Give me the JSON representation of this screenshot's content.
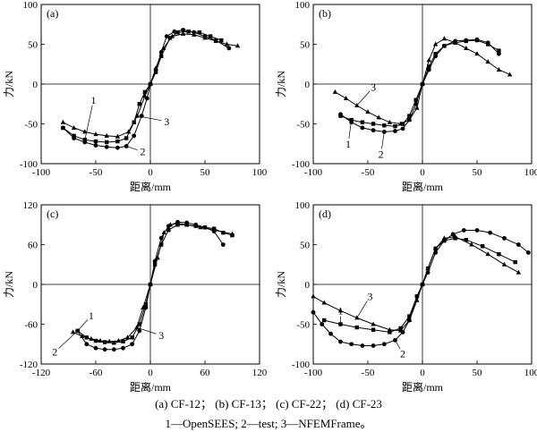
{
  "figure": {
    "caption_line1": "(a) CF-12； (b) CF-13； (c) CF-22； (d) CF-23",
    "caption_line2": "1—OpenSEES; 2—test; 3—NFEMFrame。"
  },
  "chart_data": [
    {
      "type": "line",
      "panel_label": "(a)",
      "xlabel": "距离/mm",
      "ylabel": "力/kN",
      "xlim": [
        -100,
        100
      ],
      "ylim": [
        -100,
        100
      ],
      "xticks": [
        -100,
        -50,
        0,
        50,
        100
      ],
      "yticks": [
        -100,
        -50,
        0,
        50,
        100
      ],
      "series": [
        {
          "name": "1",
          "marker": "square",
          "x": [
            -80,
            -70,
            -60,
            -50,
            -40,
            -30,
            -22,
            -15,
            -10,
            -5,
            0,
            5,
            10,
            18,
            25,
            35,
            45,
            55,
            65
          ],
          "y": [
            -55,
            -65,
            -70,
            -72,
            -73,
            -72,
            -68,
            -48,
            -25,
            -10,
            0,
            15,
            35,
            58,
            65,
            66,
            65,
            60,
            55
          ]
        },
        {
          "name": "2",
          "marker": "circle",
          "x": [
            -80,
            -70,
            -60,
            -50,
            -40,
            -30,
            -22,
            -15,
            -8,
            -3,
            0,
            5,
            10,
            15,
            22,
            30,
            40,
            50,
            60,
            72
          ],
          "y": [
            -55,
            -68,
            -73,
            -77,
            -79,
            -80,
            -78,
            -65,
            -40,
            -18,
            0,
            18,
            40,
            60,
            66,
            68,
            65,
            60,
            55,
            45
          ]
        },
        {
          "name": "3",
          "marker": "triangle",
          "x": [
            -80,
            -70,
            -60,
            -50,
            -40,
            -30,
            -20,
            -12,
            -5,
            0,
            5,
            12,
            20,
            30,
            40,
            50,
            60,
            70,
            80
          ],
          "y": [
            -48,
            -55,
            -60,
            -63,
            -65,
            -66,
            -60,
            -40,
            -15,
            0,
            20,
            45,
            60,
            63,
            62,
            58,
            54,
            50,
            48
          ]
        }
      ],
      "curve_labels": [
        {
          "text": "1",
          "x": -52,
          "y": -20
        },
        {
          "text": "2",
          "x": -7,
          "y": -85
        },
        {
          "text": "3",
          "x": 15,
          "y": -47
        }
      ]
    },
    {
      "type": "line",
      "panel_label": "(b)",
      "xlabel": "距离/mm",
      "ylabel": "力/kN",
      "xlim": [
        -100,
        100
      ],
      "ylim": [
        -100,
        100
      ],
      "xticks": [
        -100,
        -50,
        0,
        50,
        100
      ],
      "yticks": [
        -100,
        -50,
        0,
        50,
        100
      ],
      "series": [
        {
          "name": "1",
          "marker": "square",
          "x": [
            -75,
            -65,
            -55,
            -45,
            -35,
            -25,
            -18,
            -12,
            -6,
            0,
            6,
            12,
            20,
            30,
            40,
            50,
            60,
            70
          ],
          "y": [
            -40,
            -45,
            -48,
            -50,
            -52,
            -53,
            -50,
            -40,
            -20,
            0,
            22,
            38,
            48,
            52,
            54,
            55,
            50,
            42
          ]
        },
        {
          "name": "2",
          "marker": "circle",
          "x": [
            -75,
            -65,
            -55,
            -45,
            -35,
            -25,
            -18,
            -12,
            -6,
            0,
            6,
            12,
            20,
            30,
            40,
            50,
            60,
            70
          ],
          "y": [
            -38,
            -48,
            -55,
            -58,
            -60,
            -59,
            -56,
            -45,
            -25,
            0,
            18,
            35,
            48,
            54,
            55,
            56,
            52,
            38
          ]
        },
        {
          "name": "3",
          "marker": "triangle",
          "x": [
            -80,
            -70,
            -60,
            -50,
            -40,
            -30,
            -20,
            -12,
            -5,
            0,
            6,
            12,
            20,
            30,
            40,
            50,
            60,
            70,
            80
          ],
          "y": [
            -10,
            -18,
            -27,
            -35,
            -42,
            -48,
            -50,
            -45,
            -30,
            0,
            30,
            50,
            57,
            52,
            45,
            38,
            28,
            18,
            12
          ]
        }
      ],
      "curve_labels": [
        {
          "text": "1",
          "x": -68,
          "y": -75
        },
        {
          "text": "2",
          "x": -38,
          "y": -88
        },
        {
          "text": "3",
          "x": -45,
          "y": -4
        }
      ]
    },
    {
      "type": "line",
      "panel_label": "(c)",
      "xlabel": "距离/mm",
      "ylabel": "力/kN",
      "xlim": [
        -120,
        120
      ],
      "ylim": [
        -120,
        120
      ],
      "xticks": [
        -120,
        -60,
        0,
        60,
        120
      ],
      "yticks": [
        -120,
        -60,
        0,
        60,
        120
      ],
      "series": [
        {
          "name": "1",
          "marker": "square",
          "x": [
            -80,
            -70,
            -60,
            -50,
            -40,
            -30,
            -20,
            -12,
            -5,
            0,
            5,
            12,
            20,
            30,
            40,
            50,
            60,
            70,
            80,
            90
          ],
          "y": [
            -70,
            -80,
            -85,
            -87,
            -88,
            -86,
            -80,
            -60,
            -30,
            0,
            30,
            60,
            82,
            90,
            90,
            88,
            86,
            84,
            78,
            74
          ]
        },
        {
          "name": "2",
          "marker": "circle",
          "x": [
            -80,
            -70,
            -60,
            -50,
            -40,
            -30,
            -20,
            -12,
            -5,
            0,
            5,
            12,
            20,
            30,
            40,
            50,
            60,
            70,
            80
          ],
          "y": [
            -70,
            -90,
            -96,
            -98,
            -98,
            -96,
            -90,
            -70,
            -35,
            0,
            35,
            70,
            88,
            94,
            93,
            90,
            86,
            80,
            60
          ]
        },
        {
          "name": "3",
          "marker": "triangle",
          "x": [
            -85,
            -75,
            -65,
            -55,
            -45,
            -35,
            -25,
            -15,
            -8,
            0,
            8,
            15,
            22,
            30,
            40,
            55,
            70,
            90
          ],
          "y": [
            -72,
            -78,
            -82,
            -85,
            -86,
            -85,
            -80,
            -65,
            -35,
            0,
            40,
            78,
            90,
            92,
            90,
            86,
            82,
            76
          ]
        }
      ],
      "curve_labels": [
        {
          "text": "1",
          "x": -65,
          "y": -47
        },
        {
          "text": "2",
          "x": -105,
          "y": -102
        },
        {
          "text": "3",
          "x": 12,
          "y": -77
        }
      ]
    },
    {
      "type": "line",
      "panel_label": "(d)",
      "xlabel": "距离/mm",
      "ylabel": "力/kN",
      "xlim": [
        -100,
        100
      ],
      "ylim": [
        -100,
        100
      ],
      "xticks": [
        -100,
        -50,
        0,
        50,
        100
      ],
      "yticks": [
        -100,
        -50,
        0,
        50,
        100
      ],
      "series": [
        {
          "name": "1",
          "marker": "square",
          "x": [
            -90,
            -75,
            -60,
            -45,
            -30,
            -20,
            -12,
            -5,
            0,
            5,
            12,
            20,
            30,
            40,
            55,
            70,
            85
          ],
          "y": [
            -45,
            -50,
            -54,
            -57,
            -60,
            -55,
            -40,
            -15,
            0,
            20,
            45,
            55,
            58,
            56,
            48,
            38,
            28
          ]
        },
        {
          "name": "2",
          "marker": "circle",
          "x": [
            -100,
            -92,
            -84,
            -75,
            -65,
            -55,
            -45,
            -35,
            -25,
            -18,
            -12,
            -5,
            0,
            5,
            12,
            20,
            28,
            38,
            50,
            62,
            75,
            88,
            97
          ],
          "y": [
            -35,
            -50,
            -62,
            -72,
            -75,
            -77,
            -77,
            -75,
            -70,
            -60,
            -45,
            -15,
            0,
            15,
            40,
            55,
            63,
            68,
            68,
            65,
            58,
            50,
            40
          ]
        },
        {
          "name": "3",
          "marker": "triangle",
          "x": [
            -100,
            -90,
            -75,
            -60,
            -45,
            -30,
            -20,
            -12,
            -5,
            0,
            5,
            12,
            20,
            30,
            45,
            60,
            75,
            88
          ],
          "y": [
            -15,
            -23,
            -33,
            -42,
            -50,
            -57,
            -58,
            -45,
            -20,
            0,
            20,
            45,
            58,
            60,
            50,
            38,
            25,
            15
          ]
        }
      ],
      "curve_labels": [
        {
          "text": "1",
          "x": -75,
          "y": -33
        },
        {
          "text": "2",
          "x": -18,
          "y": -87
        },
        {
          "text": "3",
          "x": -48,
          "y": -15
        }
      ]
    }
  ]
}
